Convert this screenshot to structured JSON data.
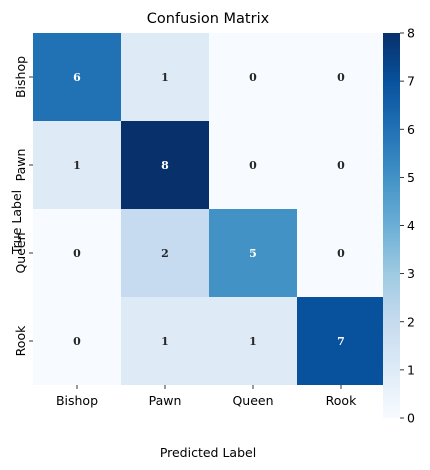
{
  "chart_data": {
    "type": "heatmap",
    "title": "Confusion Matrix",
    "xlabel": "Predicted Label",
    "ylabel": "True Label",
    "x_categories": [
      "Bishop",
      "Pawn",
      "Queen",
      "Rook"
    ],
    "y_categories": [
      "Bishop",
      "Pawn",
      "Queen",
      "Rook"
    ],
    "values": [
      [
        6,
        1,
        0,
        0
      ],
      [
        1,
        8,
        0,
        0
      ],
      [
        0,
        2,
        5,
        0
      ],
      [
        0,
        1,
        1,
        7
      ]
    ],
    "colorbar": {
      "min": 0,
      "max": 8,
      "ticks": [
        "0",
        "1",
        "2",
        "3",
        "4",
        "5",
        "6",
        "7",
        "8"
      ]
    },
    "colormap": "Blues",
    "grid": false
  }
}
